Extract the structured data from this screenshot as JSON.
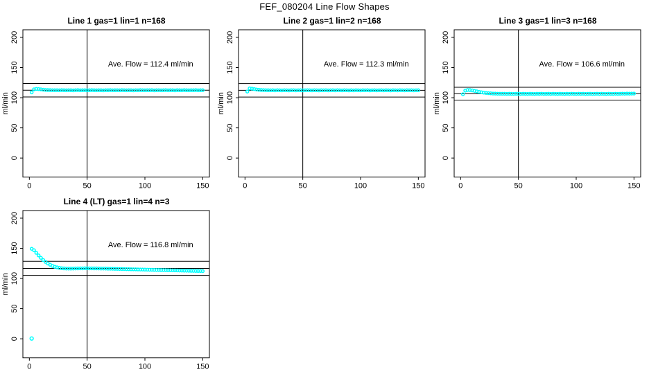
{
  "figure": {
    "title": "FEF_080204  Line Flow Shapes"
  },
  "colors": {
    "point": "#00ffff",
    "axis": "#000000",
    "background": "#ffffff"
  },
  "axis": {
    "ylabel": "ml/min",
    "xticks": [
      0,
      50,
      100,
      150
    ],
    "yticks": [
      0,
      50,
      100,
      150,
      200
    ],
    "xlim": [
      -5.6,
      155.8
    ],
    "ylim": [
      -31.6,
      212.6
    ]
  },
  "chart_data": [
    {
      "type": "scatter",
      "title": "Line 1 gas=1 lin=1 n=168",
      "annotation": "Ave. Flow =  112.4  ml/min",
      "ave_flow": 112.4,
      "ref_lines": {
        "h": [
          101.2,
          112.4,
          123.6
        ],
        "v": [
          50
        ]
      },
      "points": {
        "x0": 2,
        "dx": 2,
        "y": [
          108.8,
          113.8,
          114.6,
          114.3,
          113.8,
          113.3,
          112.9,
          112.7,
          112.6,
          112.5,
          112.4,
          112.5,
          112.3,
          112.6,
          112.4,
          112.3,
          112.5,
          112.4,
          112.2,
          112.5,
          112.6,
          112.3,
          112.4,
          112.5,
          112.3,
          112.4,
          112.6,
          112.4,
          112.3,
          112.5,
          112.4,
          112.2,
          112.5,
          112.4,
          112.6,
          112.3,
          112.4,
          112.5,
          112.3,
          112.6,
          112.4,
          112.3,
          112.5,
          112.4,
          112.2,
          112.5,
          112.3,
          112.6,
          112.4,
          112.3,
          112.5,
          112.4,
          112.6,
          112.2,
          112.4,
          112.5,
          112.3,
          112.4,
          112.6,
          112.3,
          112.5,
          112.4,
          112.2,
          112.5,
          112.4,
          112.3,
          112.6,
          112.4,
          112.3,
          112.5,
          112.4,
          112.6,
          112.3,
          112.4,
          112.5
        ]
      },
      "extra_points": []
    },
    {
      "type": "scatter",
      "title": "Line 2 gas=1 lin=2 n=168",
      "annotation": "Ave. Flow =  112.3  ml/min",
      "ave_flow": 112.3,
      "ref_lines": {
        "h": [
          101.1,
          112.3,
          123.5
        ],
        "v": [
          50
        ]
      },
      "points": {
        "x0": 2,
        "dx": 2,
        "y": [
          110.2,
          115.4,
          115.0,
          114.3,
          113.6,
          113.1,
          112.8,
          112.6,
          112.5,
          112.4,
          112.3,
          112.4,
          112.2,
          112.5,
          112.3,
          112.2,
          112.4,
          112.3,
          112.1,
          112.4,
          112.5,
          112.2,
          112.3,
          112.4,
          112.2,
          112.3,
          112.5,
          112.3,
          112.2,
          112.4,
          112.3,
          112.1,
          112.4,
          112.3,
          112.5,
          112.2,
          112.3,
          112.4,
          112.2,
          112.5,
          112.3,
          112.2,
          112.4,
          112.3,
          112.1,
          112.4,
          112.2,
          112.5,
          112.3,
          112.2,
          112.4,
          112.3,
          112.5,
          112.1,
          112.3,
          112.4,
          112.2,
          112.3,
          112.5,
          112.2,
          112.4,
          112.3,
          112.1,
          112.4,
          112.3,
          112.2,
          112.5,
          112.3,
          112.2,
          112.4,
          112.3,
          112.5,
          112.2,
          112.3,
          112.4
        ]
      },
      "extra_points": []
    },
    {
      "type": "scatter",
      "title": "Line 3 gas=1 lin=3 n=168",
      "annotation": "Ave. Flow =  106.6  ml/min",
      "ave_flow": 106.6,
      "ref_lines": {
        "h": [
          95.9,
          106.6,
          117.3
        ],
        "v": [
          50
        ]
      },
      "points": {
        "x0": 2,
        "dx": 2,
        "y": [
          105.7,
          111.8,
          112.8,
          112.7,
          112.1,
          111.3,
          110.5,
          109.7,
          109.0,
          108.4,
          107.9,
          107.5,
          107.2,
          106.9,
          106.8,
          106.6,
          106.6,
          106.5,
          106.5,
          106.4,
          106.5,
          106.4,
          106.3,
          106.5,
          106.4,
          106.3,
          106.5,
          106.4,
          106.3,
          106.5,
          106.4,
          106.2,
          106.5,
          106.4,
          106.6,
          106.3,
          106.4,
          106.5,
          106.3,
          106.6,
          106.4,
          106.3,
          106.5,
          106.4,
          106.2,
          106.5,
          106.3,
          106.6,
          106.4,
          106.3,
          106.5,
          106.4,
          106.6,
          106.2,
          106.4,
          106.5,
          106.3,
          106.4,
          106.6,
          106.3,
          106.5,
          106.4,
          106.2,
          106.5,
          106.4,
          106.3,
          106.6,
          106.4,
          106.5,
          106.7,
          106.6,
          106.8,
          106.7,
          106.8,
          106.9
        ]
      },
      "extra_points": []
    },
    {
      "type": "scatter",
      "title": "Line 4 (LT) gas=1 lin=4 n=3",
      "annotation": "Ave. Flow =  116.8  ml/min",
      "ave_flow": 116.8,
      "ref_lines": {
        "h": [
          105.1,
          116.8,
          128.5
        ],
        "v": [
          50
        ]
      },
      "points": {
        "x0": 2,
        "dx": 2,
        "y": [
          149.2,
          146.8,
          142.5,
          138.2,
          134.2,
          130.6,
          127.5,
          124.9,
          122.7,
          120.9,
          119.5,
          118.4,
          117.6,
          117.0,
          116.7,
          116.5,
          116.4,
          116.4,
          116.5,
          116.6,
          116.7,
          116.8,
          116.8,
          116.9,
          116.9,
          116.8,
          116.8,
          116.7,
          116.7,
          116.6,
          116.5,
          116.5,
          116.4,
          116.3,
          116.2,
          116.1,
          116.0,
          115.9,
          115.8,
          115.7,
          115.6,
          115.5,
          115.4,
          115.3,
          115.2,
          115.1,
          115.0,
          114.9,
          114.8,
          114.7,
          114.6,
          114.5,
          114.4,
          114.3,
          114.2,
          114.1,
          114.0,
          113.9,
          113.8,
          113.7,
          113.6,
          113.5,
          113.4,
          113.3,
          113.2,
          113.1,
          113.0,
          112.9,
          112.8,
          112.7,
          112.6,
          112.5,
          112.4,
          112.3,
          112.2
        ]
      },
      "extra_points": [
        [
          2,
          0.5
        ]
      ]
    }
  ]
}
